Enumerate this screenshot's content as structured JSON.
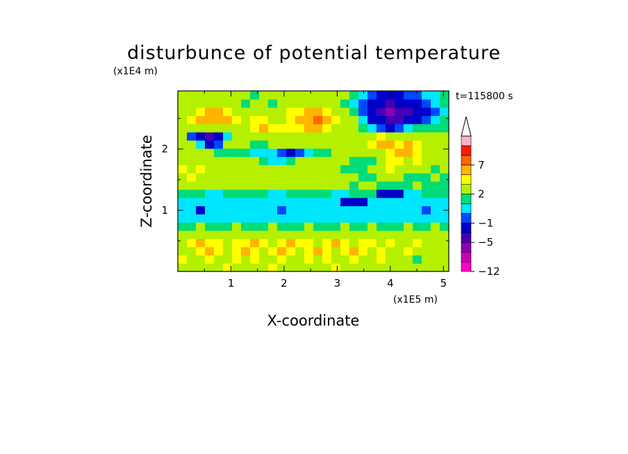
{
  "chart_data": {
    "type": "heatmap",
    "title": "disturbunce of potential temperature",
    "time_label": "t=115800 s",
    "xlabel": "X-coordinate",
    "ylabel": "Z-coordinate",
    "x_scale_label": "(x1E5 m)",
    "y_scale_label": "(x1E4 m)",
    "xlim": [
      0,
      5.1
    ],
    "ylim": [
      0,
      2.95
    ],
    "x_ticks": [
      1,
      2,
      3,
      4,
      5
    ],
    "y_ticks": [
      1,
      2
    ],
    "x_tick_labels": [
      "1",
      "2",
      "3",
      "4",
      "5"
    ],
    "y_tick_labels": [
      "1",
      "2"
    ],
    "colorbar": {
      "levels": [
        -12,
        -10,
        -8,
        -5,
        -3,
        -1,
        0,
        1,
        2,
        4,
        5,
        7,
        9,
        11,
        13
      ],
      "labeled_levels": [
        -12,
        -5,
        -1,
        2,
        7
      ],
      "labels": [
        "−12",
        "−5",
        "−1",
        "2",
        "7"
      ],
      "colors": [
        "#ff00c8",
        "#c800b4",
        "#8c00b4",
        "#4600b4",
        "#0000c8",
        "#0046ff",
        "#00e6ff",
        "#00dc78",
        "#b4f000",
        "#ffff00",
        "#ffb400",
        "#ff6400",
        "#ff1e00",
        "#f5b4c8"
      ],
      "extend_max": true
    },
    "grid": [
      [
        2,
        3,
        2,
        3,
        2,
        4,
        3,
        2,
        3,
        2,
        4,
        3,
        2,
        3,
        2,
        3,
        2,
        4,
        3,
        2,
        3,
        2,
        3,
        2,
        2,
        3,
        2,
        3,
        2,
        3
      ],
      [
        4,
        2,
        3,
        4,
        3,
        2,
        4,
        3,
        4,
        3,
        2,
        4,
        3,
        2,
        4,
        3,
        4,
        2,
        3,
        4,
        3,
        2,
        4,
        3,
        2,
        3,
        1,
        3,
        2,
        3
      ],
      [
        2,
        3,
        4,
        5,
        4,
        3,
        4,
        5,
        4,
        3,
        4,
        5,
        4,
        3,
        4,
        5,
        4,
        3,
        4,
        5,
        4,
        3,
        4,
        3,
        2,
        4,
        2,
        3,
        3,
        2
      ],
      [
        3,
        4,
        5,
        4,
        4,
        3,
        4,
        4,
        5,
        4,
        3,
        4,
        5,
        4,
        4,
        3,
        4,
        5,
        4,
        3,
        4,
        4,
        3,
        4,
        3,
        2,
        4,
        2,
        3,
        3
      ],
      [
        2,
        2,
        3,
        2,
        2,
        3,
        2,
        2,
        3,
        2,
        2,
        2,
        3,
        2,
        2,
        2,
        3,
        2,
        2,
        2,
        3,
        2,
        2,
        3,
        2,
        3,
        2,
        3,
        2,
        2
      ],
      [
        1,
        1,
        2,
        1,
        1,
        1,
        2,
        1,
        1,
        1,
        2,
        1,
        1,
        1,
        2,
        1,
        1,
        1,
        2,
        1,
        1,
        2,
        1,
        1,
        1,
        2,
        1,
        1,
        2,
        1
      ],
      [
        0,
        0,
        0,
        0,
        0,
        0,
        0,
        0,
        0,
        0,
        0,
        0,
        0,
        0,
        0,
        0,
        0,
        0,
        0,
        0,
        0,
        0,
        0,
        0,
        0,
        0,
        0,
        0,
        0,
        0
      ],
      [
        0,
        0,
        -2,
        0,
        0,
        0,
        0,
        0,
        0,
        0,
        0,
        -1,
        0,
        0,
        0,
        0,
        0,
        0,
        0,
        0,
        0,
        0,
        0,
        0,
        0,
        0,
        0,
        -1,
        0,
        0
      ],
      [
        0,
        0,
        0,
        0,
        0,
        0,
        0,
        0,
        0,
        0,
        0,
        0,
        0,
        0,
        0,
        0,
        0,
        0,
        -3,
        -3,
        -2,
        0,
        0,
        0,
        0,
        0,
        0,
        0,
        0,
        0
      ],
      [
        1,
        1,
        1,
        0,
        0,
        1,
        1,
        1,
        1,
        1,
        0,
        0,
        1,
        1,
        1,
        1,
        1,
        0,
        0,
        1,
        1,
        1,
        -2,
        -3,
        -3,
        0,
        0,
        1,
        1,
        1
      ],
      [
        2,
        3,
        2,
        2,
        2,
        3,
        2,
        2,
        3,
        2,
        2,
        3,
        2,
        2,
        2,
        3,
        2,
        2,
        2,
        1,
        2,
        2,
        1,
        1,
        1,
        1,
        2,
        1,
        1,
        1
      ],
      [
        3,
        4,
        3,
        3,
        3,
        3,
        3,
        2,
        3,
        3,
        3,
        3,
        3,
        3,
        2,
        3,
        3,
        2,
        2,
        2,
        1,
        1,
        2,
        2,
        3,
        1,
        1,
        1,
        2,
        1
      ],
      [
        4,
        3,
        4,
        3,
        3,
        3,
        2,
        2,
        3,
        3,
        3,
        2,
        2,
        2,
        3,
        3,
        2,
        2,
        1,
        1,
        1,
        2,
        3,
        4,
        3,
        3,
        2,
        2,
        1,
        2
      ],
      [
        2,
        3,
        3,
        2,
        2,
        2,
        2,
        2,
        2,
        1,
        0,
        0,
        1,
        2,
        2,
        2,
        2,
        2,
        2,
        1,
        1,
        1,
        3,
        4,
        4,
        3,
        4,
        3,
        2,
        2
      ],
      [
        3,
        2,
        2,
        2,
        1,
        1,
        1,
        1,
        0,
        0,
        0,
        -1,
        -2,
        -1,
        0,
        1,
        1,
        2,
        2,
        2,
        2,
        3,
        3,
        4,
        5,
        5,
        4,
        3,
        3,
        2
      ],
      [
        2,
        2,
        0,
        -2,
        -1,
        2,
        2,
        2,
        1,
        1,
        2,
        3,
        2,
        2,
        2,
        3,
        2,
        3,
        2,
        2,
        3,
        4,
        5,
        5,
        4,
        5,
        4,
        3,
        3,
        2
      ],
      [
        3,
        -1,
        -3,
        -4,
        -2,
        0,
        2,
        3,
        3,
        3,
        2,
        2,
        2,
        2,
        3,
        3,
        3,
        2,
        2,
        2,
        3,
        3,
        4,
        3,
        2,
        2,
        2,
        3,
        2,
        2
      ],
      [
        2,
        3,
        2,
        3,
        3,
        3,
        3,
        3,
        4,
        5,
        4,
        4,
        4,
        4,
        5,
        5,
        4,
        3,
        3,
        2,
        1,
        0,
        -1,
        -2,
        -1,
        0,
        1,
        1,
        1,
        1
      ],
      [
        3,
        4,
        5,
        5,
        6,
        5,
        4,
        3,
        4,
        4,
        3,
        3,
        4,
        5,
        6,
        7,
        5,
        4,
        3,
        2,
        0,
        -2,
        -3,
        -4,
        -4,
        -3,
        -2,
        -1,
        0,
        1
      ],
      [
        2,
        3,
        4,
        5,
        5,
        4,
        3,
        2,
        3,
        3,
        3,
        3,
        4,
        4,
        5,
        5,
        4,
        3,
        2,
        1,
        -1,
        -3,
        -4,
        -6,
        -5,
        -4,
        -3,
        -2,
        -1,
        0
      ],
      [
        3,
        3,
        2,
        3,
        3,
        2,
        2,
        1,
        2,
        2,
        1,
        2,
        2,
        3,
        3,
        2,
        2,
        2,
        1,
        0,
        -1,
        -2,
        -3,
        -4,
        -3,
        -3,
        -2,
        -1,
        0,
        1
      ],
      [
        2,
        2,
        3,
        2,
        2,
        3,
        2,
        2,
        1,
        2,
        2,
        2,
        2,
        2,
        2,
        2,
        2,
        2,
        2,
        1,
        0,
        -1,
        -2,
        -2,
        -2,
        -1,
        -1,
        0,
        0,
        1
      ]
    ]
  }
}
